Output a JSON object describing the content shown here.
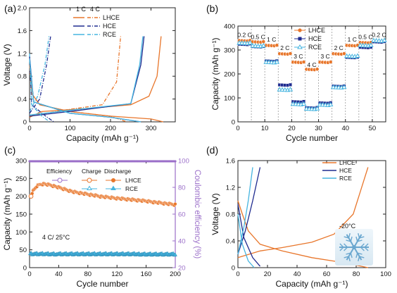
{
  "colors": {
    "lhce": "#e8762b",
    "hce": "#1f2b8f",
    "rce": "#46b5e0",
    "ce": "#9b6fc9",
    "sep": "#9a9a9a"
  },
  "chart_data": [
    {
      "panel_label": "(a)",
      "type": "line",
      "xlabel": "Capacity (mAh g⁻¹)",
      "ylabel": "Voltage (V)",
      "xlim": [
        0,
        360
      ],
      "ylim": [
        0,
        2.0
      ],
      "xticks": [
        0,
        100,
        200,
        300
      ],
      "yticks": [
        0,
        0.4,
        0.8,
        1.2,
        1.6,
        2.0
      ],
      "legend": {
        "rate_headers": [
          "1 C",
          "4 C"
        ],
        "entries": [
          "LHCE",
          "HCE",
          "RCE"
        ],
        "placement": "top-center"
      },
      "series": [
        {
          "name": "LHCE",
          "rate": "1 C",
          "dashed": false,
          "discharge": [
            [
              0,
              1.0
            ],
            [
              5,
              0.5
            ],
            [
              25,
              0.3
            ],
            [
              100,
              0.18
            ],
            [
              200,
              0.1
            ],
            [
              300,
              0.05
            ],
            [
              330,
              0.0
            ]
          ],
          "charge": [
            [
              0,
              0.08
            ],
            [
              30,
              0.18
            ],
            [
              150,
              0.24
            ],
            [
              250,
              0.3
            ],
            [
              295,
              0.45
            ],
            [
              315,
              0.8
            ],
            [
              325,
              1.5
            ]
          ]
        },
        {
          "name": "LHCE",
          "rate": "4 C",
          "dashed": true,
          "discharge": [
            [
              0,
              1.0
            ],
            [
              5,
              0.5
            ],
            [
              25,
              0.3
            ],
            [
              100,
              0.18
            ],
            [
              200,
              0.1
            ],
            [
              240,
              0.0
            ]
          ],
          "charge": [
            [
              0,
              0.1
            ],
            [
              80,
              0.2
            ],
            [
              180,
              0.3
            ],
            [
              215,
              0.7
            ],
            [
              225,
              1.5
            ]
          ]
        },
        {
          "name": "HCE",
          "rate": "1 C",
          "dashed": false,
          "discharge": [
            [
              0,
              1.15
            ],
            [
              10,
              0.35
            ],
            [
              100,
              0.15
            ],
            [
              200,
              0.08
            ],
            [
              275,
              0.0
            ]
          ],
          "charge": [
            [
              0,
              0.1
            ],
            [
              120,
              0.2
            ],
            [
              250,
              0.32
            ],
            [
              275,
              1.0
            ],
            [
              283,
              1.5
            ]
          ]
        },
        {
          "name": "HCE",
          "rate": "4 C",
          "dashed": true,
          "discharge": [
            [
              0,
              1.15
            ],
            [
              5,
              0.3
            ],
            [
              40,
              0.1
            ],
            [
              60,
              0.0
            ]
          ],
          "charge": [
            [
              0,
              0.15
            ],
            [
              25,
              0.4
            ],
            [
              42,
              1.0
            ],
            [
              52,
              1.5
            ]
          ]
        },
        {
          "name": "RCE",
          "rate": "1 C",
          "dashed": false,
          "discharge": [
            [
              0,
              1.1
            ],
            [
              10,
              0.35
            ],
            [
              100,
              0.15
            ],
            [
              200,
              0.08
            ],
            [
              275,
              0.0
            ]
          ],
          "charge": [
            [
              0,
              0.12
            ],
            [
              120,
              0.22
            ],
            [
              250,
              0.32
            ],
            [
              272,
              1.0
            ],
            [
              280,
              1.5
            ]
          ]
        },
        {
          "name": "RCE",
          "rate": "4 C",
          "dashed": true,
          "discharge": [
            [
              0,
              1.2
            ],
            [
              5,
              0.3
            ],
            [
              30,
              0.1
            ],
            [
              50,
              0.0
            ]
          ],
          "charge": [
            [
              0,
              0.18
            ],
            [
              20,
              0.45
            ],
            [
              38,
              1.0
            ],
            [
              48,
              1.5
            ]
          ]
        }
      ]
    },
    {
      "panel_label": "(b)",
      "type": "scatter",
      "xlabel": "Cycle number",
      "ylabel": "Capacity (mAh g⁻¹)",
      "xlim": [
        0,
        55
      ],
      "ylim": [
        0,
        400
      ],
      "xticks": [
        0,
        10,
        20,
        30,
        40,
        50
      ],
      "yticks": [
        0,
        100,
        200,
        300,
        400
      ],
      "legend": {
        "entries": [
          "LHCE",
          "HCE",
          "RCE"
        ],
        "placement": "top-right"
      },
      "separators": [
        5,
        10,
        15,
        20,
        25,
        30,
        35,
        40,
        45,
        50
      ],
      "rate_labels": [
        {
          "text": "0.2 C",
          "x": 2.5,
          "y": 355
        },
        {
          "text": "0.5 C",
          "x": 7.5,
          "y": 345
        },
        {
          "text": "1 C",
          "x": 12.5,
          "y": 335
        },
        {
          "text": "2 C",
          "x": 17.5,
          "y": 300
        },
        {
          "text": "3 C",
          "x": 22.5,
          "y": 265
        },
        {
          "text": "4 C",
          "x": 27.5,
          "y": 230
        },
        {
          "text": "3 C",
          "x": 32.5,
          "y": 265
        },
        {
          "text": "2 C",
          "x": 37.5,
          "y": 300
        },
        {
          "text": "1 C",
          "x": 42.5,
          "y": 335
        },
        {
          "text": "0.5 C",
          "x": 47.5,
          "y": 345
        },
        {
          "text": "0.2 C",
          "x": 52.5,
          "y": 355
        }
      ],
      "series": [
        {
          "name": "LHCE",
          "marker": "circle",
          "levels": [
            340,
            335,
            320,
            285,
            250,
            220,
            250,
            285,
            320,
            332,
            335
          ]
        },
        {
          "name": "HCE",
          "marker": "square",
          "levels": [
            325,
            315,
            255,
            155,
            85,
            60,
            80,
            150,
            270,
            312,
            335
          ]
        },
        {
          "name": "RCE",
          "marker": "triangle",
          "levels": [
            330,
            318,
            250,
            135,
            75,
            55,
            72,
            145,
            275,
            320,
            340
          ]
        }
      ]
    },
    {
      "panel_label": "(c)",
      "type": "scatter",
      "xlabel": "Cycle number",
      "ylabel": "Capacity (mAh g⁻¹)",
      "y2label": "Coulombic efficiency (%)",
      "xlim": [
        0,
        200
      ],
      "ylim": [
        0,
        300
      ],
      "y2lim": [
        20,
        100
      ],
      "xticks": [
        0,
        40,
        80,
        120,
        160,
        200
      ],
      "yticks": [
        0,
        50,
        100,
        150,
        200,
        250,
        300
      ],
      "y2ticks": [
        20,
        40,
        60,
        80,
        100
      ],
      "annotation": "4 C/ 25°C",
      "legend": {
        "headers": [
          "Efficiency",
          "Charge",
          "Discharge"
        ],
        "entries": [
          "LHCE",
          "RCE"
        ],
        "placement": "top-center"
      },
      "series": [
        {
          "name": "LHCE capacity",
          "x": [
            1,
            5,
            10,
            15,
            20,
            30,
            40,
            60,
            80,
            100,
            120,
            140,
            160,
            180,
            200
          ],
          "y": [
            200,
            215,
            228,
            233,
            234,
            230,
            224,
            212,
            205,
            198,
            194,
            190,
            186,
            181,
            176
          ]
        },
        {
          "name": "RCE capacity",
          "x": [
            1,
            20,
            40,
            60,
            80,
            100,
            120,
            140,
            160,
            180,
            200
          ],
          "y": [
            38,
            38,
            37,
            37,
            37,
            37,
            37,
            37,
            37,
            37,
            37
          ]
        },
        {
          "name": "Coulombic efficiency",
          "axis": "y2",
          "x": [
            0,
            200
          ],
          "y": [
            99.5,
            99.5
          ]
        }
      ]
    },
    {
      "panel_label": "(d)",
      "type": "line",
      "xlabel": "Capacity (mAh g⁻¹)",
      "ylabel": "Voltage (V)",
      "xlim": [
        0,
        100
      ],
      "ylim": [
        0,
        1.6
      ],
      "xticks": [
        0,
        20,
        40,
        60,
        80,
        100
      ],
      "yticks": [
        0,
        0.4,
        0.8,
        1.2,
        1.6
      ],
      "annotation": "-20°C",
      "legend": {
        "entries": [
          "LHCE",
          "HCE",
          "RCE"
        ],
        "placement": "top-right"
      },
      "series": [
        {
          "name": "LHCE",
          "discharge": [
            [
              0,
              1.0
            ],
            [
              3,
              0.8
            ],
            [
              7,
              0.55
            ],
            [
              15,
              0.35
            ],
            [
              30,
              0.25
            ],
            [
              50,
              0.15
            ],
            [
              70,
              0.08
            ],
            [
              88,
              0.0
            ]
          ],
          "charge": [
            [
              0,
              0.15
            ],
            [
              15,
              0.25
            ],
            [
              30,
              0.3
            ],
            [
              50,
              0.38
            ],
            [
              65,
              0.5
            ],
            [
              78,
              0.8
            ],
            [
              88,
              1.5
            ]
          ]
        },
        {
          "name": "HCE",
          "discharge": [
            [
              0,
              0.95
            ],
            [
              4,
              0.45
            ],
            [
              10,
              0.15
            ],
            [
              15,
              0.02
            ]
          ],
          "charge": [
            [
              0,
              0.2
            ],
            [
              5,
              0.55
            ],
            [
              10,
              1.0
            ],
            [
              13,
              1.3
            ],
            [
              15,
              1.5
            ]
          ]
        },
        {
          "name": "RCE",
          "discharge": [
            [
              0,
              0.8
            ],
            [
              3,
              0.35
            ],
            [
              7,
              0.1
            ],
            [
              11,
              0.0
            ]
          ],
          "charge": [
            [
              0,
              0.2
            ],
            [
              4,
              0.6
            ],
            [
              7,
              1.0
            ],
            [
              10,
              1.5
            ]
          ]
        }
      ]
    }
  ]
}
